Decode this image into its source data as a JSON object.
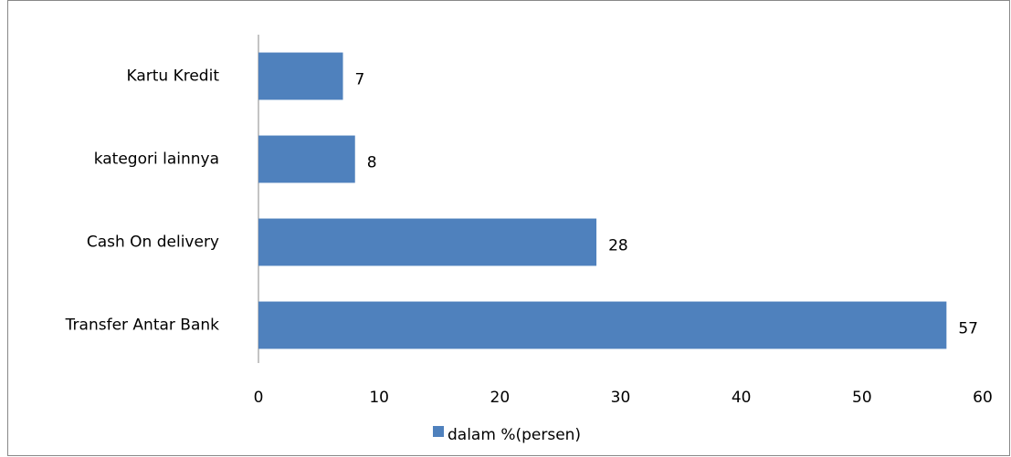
{
  "chart_data": {
    "type": "bar",
    "orientation": "horizontal",
    "categories": [
      "Transfer Antar Bank",
      "Cash On delivery",
      "kategori lainnya",
      "Kartu Kredit"
    ],
    "series": [
      {
        "name": "dalam %(persen)",
        "color": "#4f81bd",
        "values": [
          57,
          28,
          8,
          7
        ]
      }
    ],
    "xlim": [
      0,
      60
    ],
    "xticks": [
      0,
      10,
      20,
      30,
      40,
      50,
      60
    ],
    "grid": false,
    "legend": "bottom"
  }
}
